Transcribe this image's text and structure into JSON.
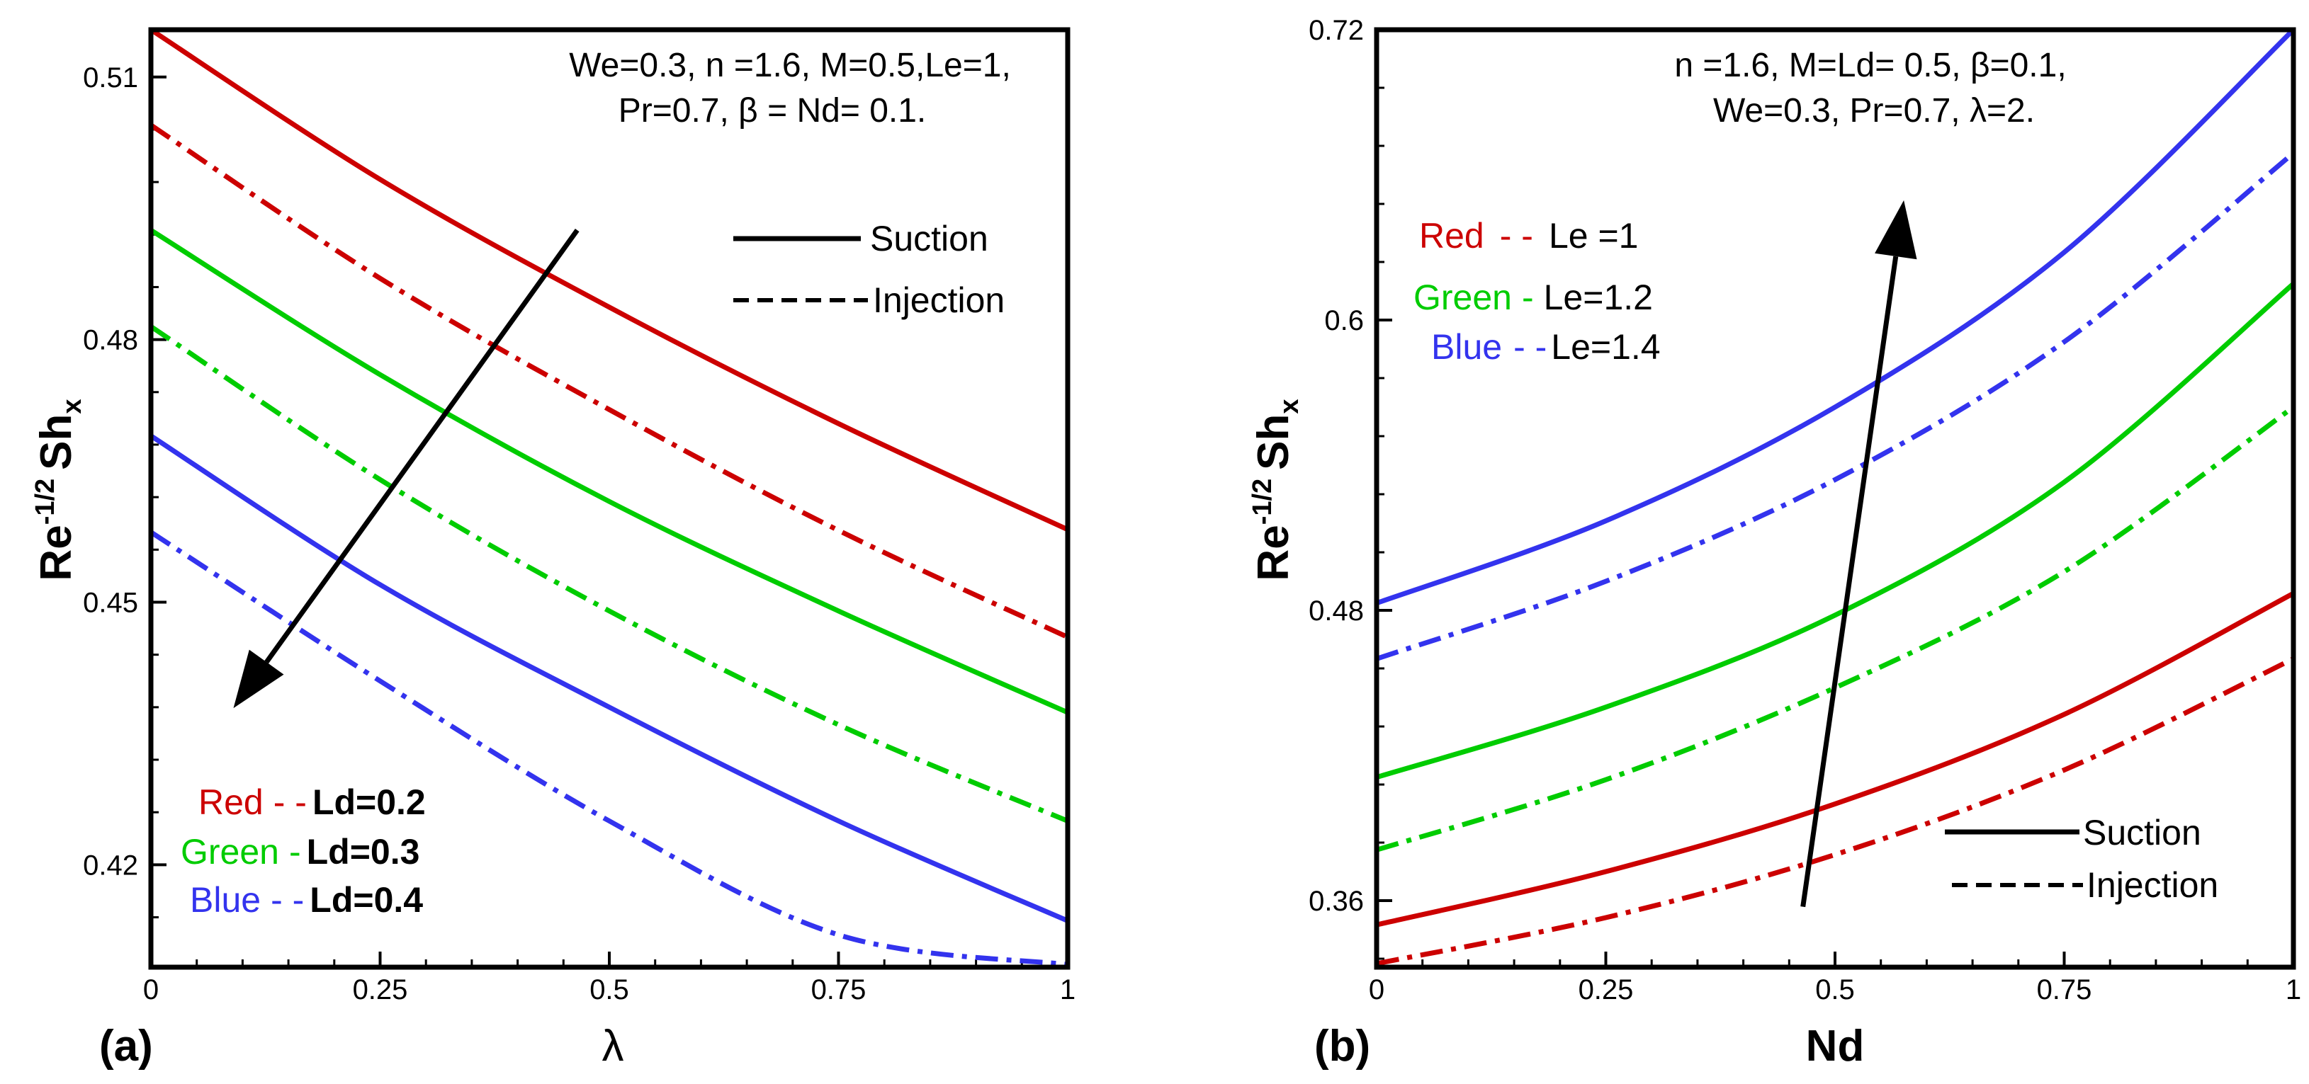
{
  "panels": [
    {
      "id": "a",
      "panel_label": "(a)",
      "xlabel": "λ",
      "ylabel_base": "Re",
      "ylabel_exp": "-1/2",
      "ylabel_sh": "Sh",
      "ylabel_sub": "x",
      "params_line1": "We=0.3, n =1.6, M=0.5,Le=1,",
      "params_line2": "Pr=0.7, β = Nd= 0.1.",
      "style_legend": [
        {
          "label": "Suction",
          "dash": "solid"
        },
        {
          "label": "Injection",
          "dash": "dash"
        }
      ],
      "color_legend": [
        {
          "color_name": "Red",
          "sep": "- -",
          "param": "Ld=0.2",
          "color": "#cc0000"
        },
        {
          "color_name": "Green",
          "sep": "-",
          "param": "Ld=0.3",
          "color": "#00cc00"
        },
        {
          "color_name": "Blue",
          "sep": "- -",
          "param": "Ld=0.4",
          "color": "#3333ee"
        }
      ]
    },
    {
      "id": "b",
      "panel_label": "(b)",
      "xlabel": "Nd",
      "ylabel_base": "Re",
      "ylabel_exp": "-1/2",
      "ylabel_sh": "Sh",
      "ylabel_sub": "x",
      "params_line1": "n =1.6, M=Ld= 0.5, β=0.1,",
      "params_line2": "We=0.3, Pr=0.7, λ=2.",
      "style_legend": [
        {
          "label": "Suction",
          "dash": "solid"
        },
        {
          "label": "Injection",
          "dash": "dash"
        }
      ],
      "color_legend": [
        {
          "color_name": "Red",
          "sep": "- -",
          "param": "Le =1",
          "color": "#cc0000"
        },
        {
          "color_name": "Green",
          "sep": "-",
          "param": "Le=1.2",
          "color": "#00cc00"
        },
        {
          "color_name": "Blue",
          "sep": "- -",
          "param": "Le=1.4",
          "color": "#3333ee"
        }
      ]
    }
  ],
  "chart_data": [
    {
      "type": "line",
      "panel": "a",
      "xlabel": "λ",
      "ylabel": "Re^-1/2 Sh_x",
      "xlim": [
        0,
        1
      ],
      "ylim": [
        0.4083,
        0.5154
      ],
      "xticks": [
        "0",
        "0.25",
        "0.5",
        "0.75",
        "1"
      ],
      "yticks": [
        "0.42",
        "0.45",
        "0.48",
        "0.51"
      ],
      "arrow_from": [
        0.465,
        0.4925
      ],
      "arrow_to": [
        0.09,
        0.4379
      ],
      "series": [
        {
          "name": "Ld=0.2 Suction",
          "color": "#cc0000",
          "dash": "solid",
          "x": [
            0,
            0.25,
            0.5,
            0.75,
            1
          ],
          "y": [
            0.5154,
            0.4983,
            0.4837,
            0.4704,
            0.4583
          ]
        },
        {
          "name": "Ld=0.2 Injection",
          "color": "#cc0000",
          "dash": "dashdot",
          "x": [
            0,
            0.25,
            0.5,
            0.75,
            1
          ],
          "y": [
            0.5045,
            0.487,
            0.472,
            0.4582,
            0.446
          ]
        },
        {
          "name": "Ld=0.3 Suction",
          "color": "#00cc00",
          "dash": "solid",
          "x": [
            0,
            0.25,
            0.5,
            0.75,
            1
          ],
          "y": [
            0.4925,
            0.476,
            0.4615,
            0.449,
            0.4374
          ]
        },
        {
          "name": "Ld=0.3 Injection",
          "color": "#00cc00",
          "dash": "dashdot",
          "x": [
            0,
            0.25,
            0.5,
            0.75,
            1
          ],
          "y": [
            0.4815,
            0.464,
            0.449,
            0.436,
            0.425
          ]
        },
        {
          "name": "Ld=0.4 Suction",
          "color": "#3333ee",
          "dash": "solid",
          "x": [
            0,
            0.25,
            0.5,
            0.75,
            1
          ],
          "y": [
            0.469,
            0.452,
            0.438,
            0.425,
            0.4136
          ]
        },
        {
          "name": "Ld=0.4 Injection",
          "color": "#3333ee",
          "dash": "dashdot",
          "x": [
            0,
            0.25,
            0.5,
            0.75,
            1
          ],
          "y": [
            0.458,
            0.441,
            0.425,
            0.412,
            0.4086
          ]
        }
      ]
    },
    {
      "type": "line",
      "panel": "b",
      "xlabel": "Nd",
      "ylabel": "Re^-1/2 Sh_x",
      "xlim": [
        0,
        1
      ],
      "ylim": [
        0.3325,
        0.72
      ],
      "xticks": [
        "0",
        "0.25",
        "0.5",
        "0.75",
        "1"
      ],
      "yticks": [
        "0.36",
        "0.48",
        "0.6",
        "0.72"
      ],
      "arrow_from": [
        0.465,
        0.3575
      ],
      "arrow_to": [
        0.575,
        0.6495
      ],
      "series": [
        {
          "name": "Le=1 Suction",
          "color": "#cc0000",
          "dash": "solid",
          "x": [
            0,
            0.25,
            0.5,
            0.75,
            1
          ],
          "y": [
            0.35,
            0.372,
            0.4,
            0.437,
            0.487
          ]
        },
        {
          "name": "Le=1 Injection",
          "color": "#cc0000",
          "dash": "dashdot",
          "x": [
            0,
            0.25,
            0.5,
            0.75,
            1
          ],
          "y": [
            0.334,
            0.353,
            0.379,
            0.414,
            0.46
          ]
        },
        {
          "name": "Le=1.2 Suction",
          "color": "#00cc00",
          "dash": "solid",
          "x": [
            0,
            0.25,
            0.5,
            0.75,
            1
          ],
          "y": [
            0.411,
            0.44,
            0.478,
            0.533,
            0.615
          ]
        },
        {
          "name": "Le=1.2 Injection",
          "color": "#00cc00",
          "dash": "dashdot",
          "x": [
            0,
            0.25,
            0.5,
            0.75,
            1
          ],
          "y": [
            0.381,
            0.41,
            0.448,
            0.496,
            0.564
          ]
        },
        {
          "name": "Le=1.4 Suction",
          "color": "#3333ee",
          "dash": "solid",
          "x": [
            0,
            0.25,
            0.5,
            0.75,
            1
          ],
          "y": [
            0.483,
            0.517,
            0.564,
            0.628,
            0.72
          ]
        },
        {
          "name": "Le=1.4 Injection",
          "color": "#3333ee",
          "dash": "dashdot",
          "x": [
            0,
            0.25,
            0.5,
            0.75,
            1
          ],
          "y": [
            0.46,
            0.492,
            0.534,
            0.591,
            0.669
          ]
        }
      ]
    }
  ]
}
